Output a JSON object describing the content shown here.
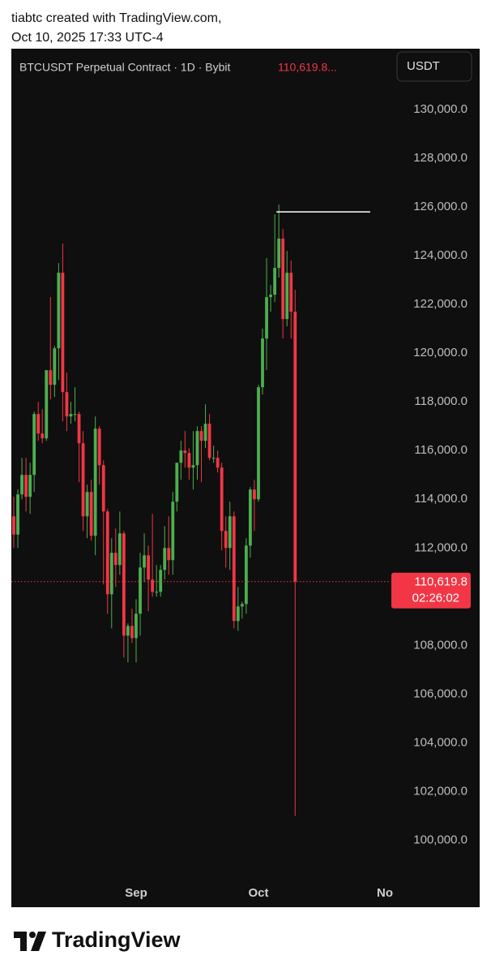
{
  "header": {
    "line1": "tiabtc created with TradingView.com,",
    "line2": "Oct 10, 2025 17:33 UTC-4"
  },
  "footer": {
    "brand": "TradingView"
  },
  "chart_data": {
    "type": "candlestick",
    "title": "BTCUSDT Perpetual Contract · 1D · Bybit",
    "title_price": "110,619.8...",
    "currency_button": "USDT",
    "up_color": "#4caf50",
    "down_color": "#f23645",
    "ylim": [
      97250,
      132500
    ],
    "yticks": [
      {
        "value": 100000,
        "label": "100,000.0"
      },
      {
        "value": 102000,
        "label": "102,000.0"
      },
      {
        "value": 104000,
        "label": "104,000.0"
      },
      {
        "value": 106000,
        "label": "106,000.0"
      },
      {
        "value": 108000,
        "label": "108,000.0"
      },
      {
        "value": 110000,
        "label": "110,000.0"
      },
      {
        "value": 112000,
        "label": "112,000.0"
      },
      {
        "value": 114000,
        "label": "114,000.0"
      },
      {
        "value": 116000,
        "label": "116,000.0"
      },
      {
        "value": 118000,
        "label": "118,000.0"
      },
      {
        "value": 120000,
        "label": "120,000.0"
      },
      {
        "value": 122000,
        "label": "122,000.0"
      },
      {
        "value": 124000,
        "label": "124,000.0"
      },
      {
        "value": 126000,
        "label": "126,000.0"
      },
      {
        "value": 128000,
        "label": "128,000.0"
      },
      {
        "value": 130000,
        "label": "130,000.0"
      }
    ],
    "categories": [
      null,
      null,
      null,
      null,
      null,
      null,
      null,
      null,
      null,
      null,
      null,
      null,
      null,
      null,
      null,
      null,
      null,
      null,
      null,
      null,
      null,
      null,
      null,
      null,
      null,
      null,
      null,
      null,
      null,
      null,
      "Sep",
      null,
      null,
      null,
      null,
      null,
      null,
      null,
      null,
      null,
      null,
      null,
      null,
      null,
      null,
      null,
      null,
      null,
      null,
      null,
      null,
      null,
      null,
      null,
      null,
      null,
      null,
      null,
      null,
      null,
      "Oct",
      null,
      null,
      null,
      null,
      null,
      null,
      null,
      null,
      null,
      null,
      null,
      null,
      null,
      null,
      null,
      null,
      null,
      null,
      null,
      null,
      null,
      null,
      null,
      null,
      null,
      null,
      null,
      null,
      null,
      null,
      "No"
    ],
    "open": [
      113300,
      112550,
      114200,
      115000,
      114100,
      115000,
      117500,
      116700,
      116500,
      119300,
      118700,
      120200,
      123300,
      118400,
      117400,
      117500,
      117500,
      116300,
      113300,
      114300,
      112500,
      116900,
      115400,
      113500,
      110100,
      111800,
      111300,
      112600,
      108400,
      108800,
      108300,
      109300,
      111200,
      111700,
      110700,
      110200,
      110200,
      111100,
      112000,
      111500,
      113900,
      115500,
      116000,
      115900,
      115300,
      115400,
      116800,
      116400,
      117100,
      115700,
      115700,
      115300,
      112700,
      112000,
      113300,
      109000,
      109600,
      109700,
      112100,
      114400,
      114000,
      118600,
      120600,
      122300,
      122400,
      123500,
      124700,
      121400,
      123300,
      121700,
      null,
      null,
      null,
      null,
      null,
      null,
      null,
      null,
      null,
      null,
      null,
      null,
      null,
      null,
      null,
      null,
      null,
      null,
      null,
      null,
      null,
      null
    ],
    "high": [
      114100,
      114400,
      115700,
      115700,
      115500,
      117600,
      118000,
      117700,
      119300,
      122300,
      120300,
      123700,
      124500,
      119200,
      118000,
      118600,
      117600,
      116800,
      114600,
      114800,
      117400,
      117000,
      115600,
      113600,
      112400,
      112800,
      113500,
      112700,
      108900,
      109500,
      109900,
      111800,
      112600,
      112100,
      113400,
      111300,
      111300,
      112900,
      113300,
      114300,
      115500,
      116400,
      116800,
      116100,
      116800,
      117000,
      117000,
      117900,
      117500,
      116200,
      116000,
      115500,
      113300,
      113900,
      113500,
      110400,
      109800,
      112400,
      114500,
      114800,
      118700,
      121000,
      123900,
      122800,
      125700,
      126100,
      125100,
      124200,
      123800,
      122600,
      null,
      null,
      null,
      null,
      null,
      null,
      null,
      null,
      null,
      null,
      null,
      null,
      null,
      null,
      null,
      null,
      null,
      null,
      null,
      null,
      null,
      null
    ],
    "low": [
      112000,
      112000,
      114000,
      113500,
      113400,
      114300,
      116400,
      116300,
      116400,
      118100,
      118200,
      118900,
      117200,
      116800,
      117100,
      117200,
      114700,
      112700,
      112400,
      112300,
      111700,
      114600,
      110500,
      109300,
      108700,
      110400,
      110900,
      107500,
      107300,
      108100,
      107300,
      108400,
      110600,
      109400,
      110000,
      110000,
      110000,
      110700,
      110900,
      110900,
      113500,
      114800,
      115300,
      114800,
      114400,
      114800,
      114700,
      116100,
      115600,
      115500,
      115100,
      111900,
      111200,
      111100,
      108700,
      108600,
      109100,
      109300,
      111600,
      112700,
      113900,
      118300,
      119300,
      121700,
      122100,
      123100,
      120600,
      121100,
      120600,
      101000,
      null,
      null,
      null,
      null,
      null,
      null,
      null,
      null,
      null,
      null,
      null,
      null,
      null,
      null,
      null,
      null,
      null,
      null,
      null,
      null,
      null,
      null
    ],
    "close": [
      112550,
      114200,
      115000,
      114100,
      115000,
      117500,
      116700,
      116500,
      119300,
      118700,
      120200,
      123300,
      118400,
      117400,
      117500,
      117500,
      116300,
      113300,
      114300,
      112500,
      116900,
      115400,
      113500,
      110100,
      111800,
      111300,
      112600,
      108400,
      108800,
      108300,
      109300,
      111200,
      111700,
      110700,
      110200,
      110200,
      111100,
      112000,
      111500,
      113900,
      115500,
      116000,
      115900,
      115300,
      115400,
      116800,
      116400,
      117100,
      115700,
      115700,
      115300,
      112700,
      112000,
      113300,
      109000,
      109600,
      109700,
      112100,
      114400,
      114000,
      118600,
      120600,
      122300,
      122400,
      123500,
      124700,
      121400,
      123300,
      121700,
      110619.8,
      null,
      null,
      null,
      null,
      null,
      null,
      null,
      null,
      null,
      null,
      null,
      null,
      null,
      null,
      null,
      null,
      null,
      null,
      null,
      null,
      null,
      null
    ],
    "last_price": {
      "value": 110619.8,
      "label": "110,619.8"
    },
    "countdown": "02:26:02",
    "ray_level": 125800
  }
}
